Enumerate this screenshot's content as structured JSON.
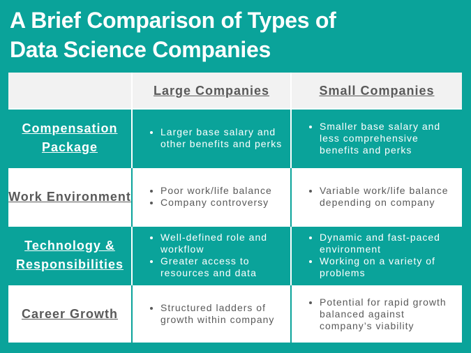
{
  "header": {
    "title_lines": [
      "A Brief Comparison of Types of",
      "Data Science Companies"
    ]
  },
  "table": {
    "columns": [
      "Large Companies",
      "Small Companies"
    ],
    "rows": [
      {
        "label": "Compensation Package",
        "cells": [
          [
            "Larger base salary and other benefits and perks"
          ],
          [
            "Smaller base salary and less comprehensive benefits and perks"
          ]
        ]
      },
      {
        "label": "Work Environment",
        "cells": [
          [
            "Poor work/life balance",
            "Company controversy"
          ],
          [
            "Variable work/life balance depending on company"
          ]
        ]
      },
      {
        "label": "Technology & Responsibilities",
        "cells": [
          [
            "Well-defined role and workflow",
            "Greater access to resources and data"
          ],
          [
            "Dynamic and fast-paced environment",
            "Working on a variety of problems"
          ]
        ]
      },
      {
        "label": "Career Growth",
        "cells": [
          [
            "Structured ladders of growth within company"
          ],
          [
            "Potential for rapid growth balanced against company’s viability"
          ]
        ]
      }
    ]
  }
}
